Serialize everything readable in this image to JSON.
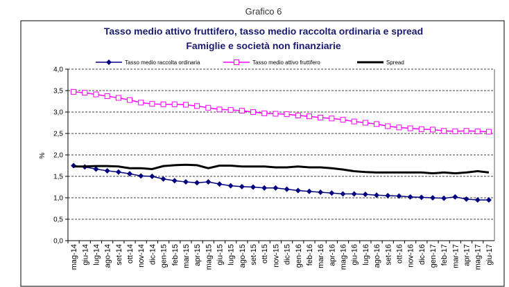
{
  "chart_data": {
    "type": "line",
    "header": "Grafico 6",
    "title": "Tasso medio attivo fruttifero, tasso medio raccolta ordinaria e spread",
    "subtitle": "Famiglie e società non finanziarie",
    "y_label": "%",
    "categories": [
      "mag-14",
      "giu-14",
      "lug-14",
      "ago-14",
      "set-14",
      "ott-14",
      "nov-14",
      "dic-14",
      "gen-15",
      "feb-15",
      "mar-15",
      "apr-15",
      "mag-15",
      "giu-15",
      "lug-15",
      "ago-15",
      "set-15",
      "ott-15",
      "nov-15",
      "dic-15",
      "gen-16",
      "feb-16",
      "mar-16",
      "apr-16",
      "mag-16",
      "giu-16",
      "lug-16",
      "ago-16",
      "set-16",
      "ott-16",
      "nov-16",
      "dic-16",
      "gen-17",
      "feb-17",
      "mar-17",
      "apr-17",
      "mag-17",
      "giu-17"
    ],
    "series": [
      {
        "name": "Tasso medio raccolta ordinaria",
        "color": "#000080",
        "marker": "diamond",
        "width": 1.5,
        "values": [
          1.75,
          1.72,
          1.67,
          1.63,
          1.6,
          1.56,
          1.51,
          1.5,
          1.44,
          1.4,
          1.37,
          1.35,
          1.37,
          1.32,
          1.28,
          1.26,
          1.25,
          1.23,
          1.23,
          1.2,
          1.17,
          1.15,
          1.13,
          1.11,
          1.09,
          1.09,
          1.08,
          1.06,
          1.05,
          1.04,
          1.02,
          1.01,
          1.0,
          0.99,
          1.02,
          0.97,
          0.95,
          0.95
        ]
      },
      {
        "name": "Tasso medio attivo fruttifero",
        "color": "#ff00ff",
        "marker": "square",
        "width": 1.5,
        "values": [
          3.47,
          3.45,
          3.41,
          3.37,
          3.33,
          3.28,
          3.22,
          3.19,
          3.18,
          3.18,
          3.17,
          3.14,
          3.1,
          3.06,
          3.05,
          3.03,
          3.0,
          2.97,
          2.96,
          2.95,
          2.92,
          2.9,
          2.87,
          2.85,
          2.82,
          2.78,
          2.75,
          2.72,
          2.67,
          2.64,
          2.62,
          2.6,
          2.59,
          2.56,
          2.55,
          2.56,
          2.55,
          2.54
        ]
      },
      {
        "name": "Spread",
        "color": "#000000",
        "marker": "none",
        "width": 3,
        "values": [
          1.73,
          1.73,
          1.74,
          1.74,
          1.73,
          1.69,
          1.69,
          1.67,
          1.74,
          1.76,
          1.77,
          1.76,
          1.69,
          1.75,
          1.75,
          1.73,
          1.73,
          1.73,
          1.71,
          1.71,
          1.73,
          1.71,
          1.71,
          1.69,
          1.66,
          1.62,
          1.6,
          1.59,
          1.59,
          1.59,
          1.59,
          1.59,
          1.57,
          1.59,
          1.57,
          1.59,
          1.62,
          1.59
        ]
      }
    ],
    "ylim": [
      0,
      4
    ],
    "yticks": [
      {
        "value": 0,
        "label": "0,0"
      },
      {
        "value": 0.5,
        "label": "0,5"
      },
      {
        "value": 1,
        "label": "1,0"
      },
      {
        "value": 1.5,
        "label": "1,5"
      },
      {
        "value": 2,
        "label": "2,0"
      },
      {
        "value": 2.5,
        "label": "2,5"
      },
      {
        "value": 3,
        "label": "3,0"
      },
      {
        "value": 3.5,
        "label": "3,5"
      },
      {
        "value": 4,
        "label": "4,0"
      }
    ],
    "grid": true
  }
}
